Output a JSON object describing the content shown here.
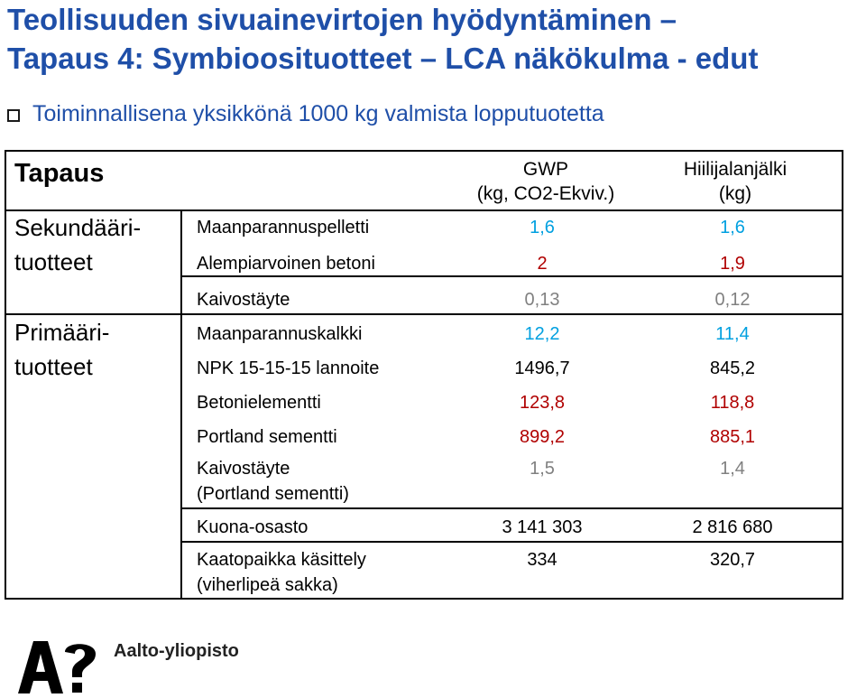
{
  "title_line1": "Teollisuuden sivuainevirtojen hyödyntäminen –",
  "title_line2": "Tapaus 4: Symbioosituotteet – LCA näkökulma - edut",
  "bullet_text": "Toiminnallisena yksikkönä 1000 kg valmista lopputuotetta",
  "table": {
    "col_case": "Tapaus",
    "col_gwp_line1": "GWP",
    "col_gwp_line2": "(kg, CO2-Ekviv.)",
    "col_cf_line1": "Hiilijalanjälki",
    "col_cf_line2": "(kg)",
    "group_secondary_line1": "Sekundääri-",
    "group_secondary_line2": "tuotteet",
    "group_primary_line1": "Primääri-",
    "group_primary_line2": "tuotteet",
    "rows": [
      {
        "label1": "Maanparannuspelletti",
        "label2": "",
        "gwp": "1,6",
        "cf": "1,6",
        "color": "#00a0e0"
      },
      {
        "label1": "Alempiarvoinen betoni",
        "label2": "",
        "gwp": "2",
        "cf": "1,9",
        "color": "#b00000"
      },
      {
        "label1": "Kaivostäyte",
        "label2": "",
        "gwp": "0,13",
        "cf": "0,12",
        "color": "#808080"
      },
      {
        "label1": "Maanparannuskalkki",
        "label2": "",
        "gwp": "12,2",
        "cf": "11,4",
        "color": "#00a0e0"
      },
      {
        "label1": "NPK 15-15-15 lannoite",
        "label2": "",
        "gwp": "1496,7",
        "cf": "845,2",
        "color": "#000000"
      },
      {
        "label1": "Betonielementti",
        "label2": "",
        "gwp": "123,8",
        "cf": "118,8",
        "color": "#b00000"
      },
      {
        "label1": "Portland sementti",
        "label2": "",
        "gwp": "899,2",
        "cf": "885,1",
        "color": "#b00000"
      },
      {
        "label1": "Kaivostäyte",
        "label2": "(Portland sementti)",
        "gwp": "1,5",
        "cf": "1,4",
        "color": "#808080"
      },
      {
        "label1": "Kuona-osasto",
        "label2": "",
        "gwp": "3 141 303",
        "cf": "2 816 680",
        "color": "#000000"
      },
      {
        "label1": "Kaatopaikka käsittely",
        "label2": "(viherlipeä sakka)",
        "gwp": "334",
        "cf": "320,7",
        "color": "#000000"
      }
    ]
  },
  "logo": {
    "text": "Aalto-yliopisto",
    "icon": "aalto-logo-icon"
  }
}
